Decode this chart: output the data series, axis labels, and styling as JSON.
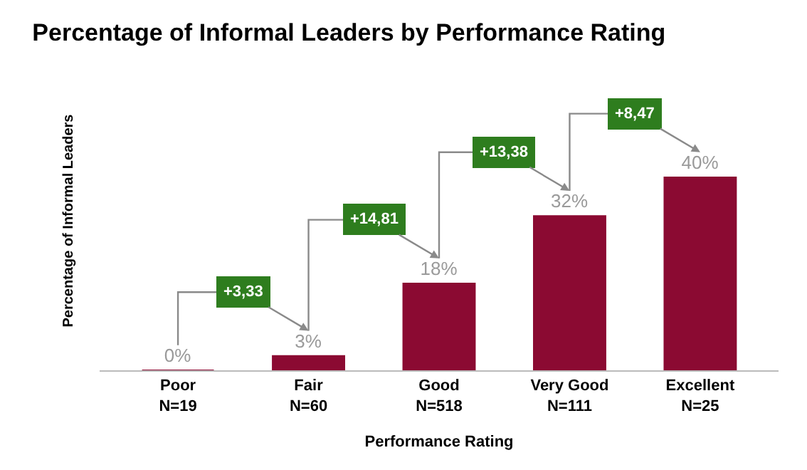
{
  "chart_data": {
    "type": "bar",
    "title": "Percentage of Informal Leaders by Performance Rating",
    "xlabel": "Performance Rating",
    "ylabel": "Percentage of Informal Leaders",
    "categories": [
      "Poor\nN=19",
      "Fair\nN=60",
      "Good\nN=518",
      "Very Good\nN=111",
      "Excellent\nN=25"
    ],
    "values": [
      0,
      3,
      18,
      32,
      40
    ],
    "color": "#8b0a32",
    "value_labels": [
      "0%",
      "3%",
      "18%",
      "32%",
      "40%"
    ],
    "annotations": [
      "+3,33",
      "+14,81",
      "+13,38",
      "+8,47"
    ]
  }
}
